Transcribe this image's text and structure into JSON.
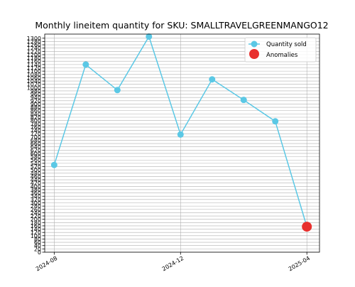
{
  "chart_data": {
    "type": "line",
    "title": "Monthly lineitem quantity for SKU: SMALLTRAVELGREENMANGO12",
    "xlabel": "",
    "ylabel": "",
    "x_tick_labels": [
      "2024-08",
      "2024-12",
      "2025-04"
    ],
    "x_tick_months": [
      0,
      4,
      8
    ],
    "y_tick_values": [
      0,
      20,
      40,
      60,
      80,
      100,
      120,
      140,
      160,
      180,
      200,
      220,
      240,
      260,
      280,
      300,
      320,
      340,
      360,
      380,
      400,
      420,
      440,
      460,
      480,
      500,
      520,
      540,
      560,
      580,
      600,
      620,
      640,
      660,
      680,
      700,
      720,
      740,
      760,
      780,
      800,
      820,
      840,
      860,
      880,
      900,
      920,
      940,
      960,
      980,
      1000,
      1020,
      1040,
      1060,
      1080,
      1100,
      1120,
      1140,
      1160,
      1180,
      1200,
      1220,
      1240,
      1260,
      1280,
      1300
    ],
    "ylim": [
      0,
      1325
    ],
    "xlim_months": [
      -0.3,
      8.4
    ],
    "grid": true,
    "legend_position": "top-right",
    "series": [
      {
        "name": "Quantity sold",
        "color": "#5bc8e5",
        "points": [
          {
            "x": "2024-08",
            "month": 0,
            "y": 530
          },
          {
            "x": "2024-09",
            "month": 1,
            "y": 1140
          },
          {
            "x": "2024-10",
            "month": 2,
            "y": 985
          },
          {
            "x": "2024-11",
            "month": 3,
            "y": 1310
          },
          {
            "x": "2024-12",
            "month": 4,
            "y": 715
          },
          {
            "x": "2025-01",
            "month": 5,
            "y": 1050
          },
          {
            "x": "2025-02",
            "month": 6,
            "y": 925
          },
          {
            "x": "2025-03",
            "month": 7,
            "y": 795
          },
          {
            "x": "2025-04",
            "month": 8,
            "y": 155
          }
        ]
      },
      {
        "name": "Anomalies",
        "color": "#e8302e",
        "points": [
          {
            "x": "2025-04",
            "month": 8,
            "y": 155
          }
        ]
      }
    ]
  }
}
